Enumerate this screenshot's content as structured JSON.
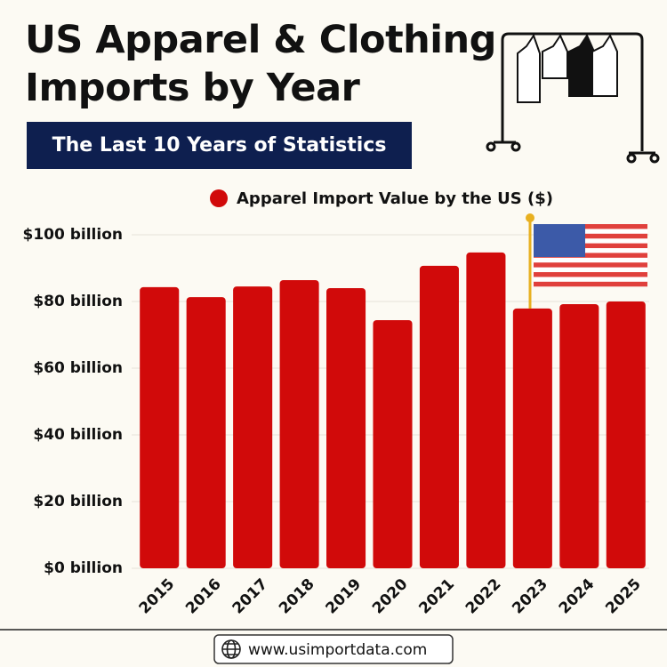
{
  "chart_data": {
    "type": "bar",
    "title": "US Apparel & Clothing Imports by Year",
    "subtitle": "The Last 10 Years of Statistics",
    "categories": [
      "2015",
      "2016",
      "2017",
      "2018",
      "2019",
      "2020",
      "2021",
      "2022",
      "2023",
      "2024",
      "2025"
    ],
    "series": [
      {
        "name": "Apparel Import Value by the US ($)",
        "color": "#d10a0a",
        "values": [
          84.3,
          81.3,
          84.5,
          86.4,
          84,
          74.4,
          90.7,
          94.7,
          77.9,
          79.2,
          80
        ]
      }
    ],
    "ylim": [
      0,
      100
    ],
    "yticks": [
      {
        "value": 0,
        "label": "$0 billion"
      },
      {
        "value": 20,
        "label": "$20 billion"
      },
      {
        "value": 40,
        "label": "$40 billion"
      },
      {
        "value": 60,
        "label": "$60 billion"
      },
      {
        "value": 80,
        "label": "$80 billion"
      },
      {
        "value": 100,
        "label": "$100 billion"
      }
    ],
    "grid": true
  },
  "footer": {
    "website": "www.usimportdata.com"
  }
}
